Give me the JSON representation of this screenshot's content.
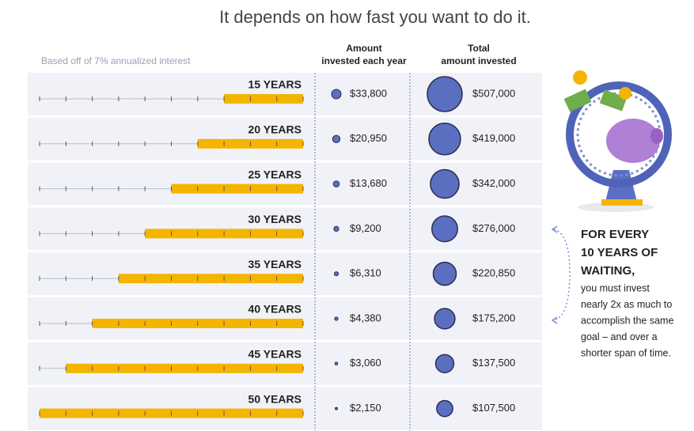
{
  "title": "It depends on how fast you want to do it.",
  "note": "Based off of 7% annualized interest",
  "columns": {
    "annual": [
      "Amount",
      "invested each year"
    ],
    "total": [
      "Total",
      "amount invested"
    ]
  },
  "rows": {
    "years": {
      "values": [
        15,
        20,
        25,
        30,
        35,
        40,
        45,
        50
      ],
      "value_labels": [
        "15 YEARS",
        "20 YEARS",
        "25 YEARS",
        "30 YEARS",
        "35 YEARS",
        "40 YEARS",
        "45 YEARS",
        "50 YEARS"
      ]
    },
    "annual": {
      "values": [
        33800,
        20950,
        13680,
        9200,
        6310,
        4380,
        3060,
        2150
      ],
      "value_labels": [
        "$33,800",
        "$20,950",
        "$13,680",
        "$9,200",
        "$6,310",
        "$4,380",
        "$3,060",
        "$2,150"
      ]
    },
    "total": {
      "values": [
        507000,
        419000,
        342000,
        276000,
        220850,
        175200,
        137500,
        107500
      ],
      "value_labels": [
        "$507,000",
        "$419,000",
        "$342,000",
        "$276,000",
        "$220,850",
        "$175,200",
        "$137,500",
        "$107,500"
      ]
    }
  },
  "side_note": {
    "heading": [
      "FOR EVERY",
      "10 YEARS OF",
      "WAITING,"
    ],
    "body": [
      "you must invest",
      "nearly 2x as much to",
      "accomplish the same",
      "goal – and over a",
      "shorter span of time."
    ]
  }
}
